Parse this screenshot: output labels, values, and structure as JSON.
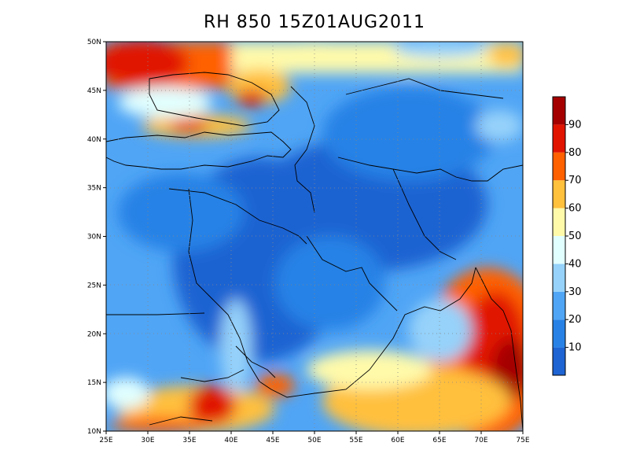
{
  "title": "RH 850  15Z01AUG2011",
  "map": {
    "lon_ticks": [
      "25E",
      "30E",
      "35E",
      "40E",
      "45E",
      "50E",
      "55E",
      "60E",
      "65E",
      "70E",
      "75E"
    ],
    "lat_ticks": [
      "10N",
      "15N",
      "20N",
      "25N",
      "30N",
      "35N",
      "40N",
      "45N",
      "50N"
    ]
  },
  "colorbar": {
    "labels": [
      "10",
      "20",
      "30",
      "40",
      "50",
      "60",
      "70",
      "80",
      "90"
    ],
    "colors": [
      "#1e64d2",
      "#2882e6",
      "#50a5f5",
      "#96d2fa",
      "#e1ffff",
      "#fffaaa",
      "#ffc03c",
      "#ff6000",
      "#e11400",
      "#a50000"
    ]
  },
  "chart_data": {
    "type": "heatmap",
    "title": "RH 850  15Z01AUG2011",
    "xlim": [
      25,
      75
    ],
    "ylim": [
      10,
      50
    ],
    "x_ticks": [
      "25E",
      "30E",
      "35E",
      "40E",
      "45E",
      "50E",
      "55E",
      "60E",
      "65E",
      "70E",
      "75E"
    ],
    "y_ticks": [
      "10N",
      "15N",
      "20N",
      "25N",
      "30N",
      "35N",
      "40N",
      "45N",
      "50N"
    ],
    "colorbar_levels": [
      10,
      20,
      30,
      40,
      50,
      60,
      70,
      80,
      90
    ],
    "grid": "dotted"
  }
}
